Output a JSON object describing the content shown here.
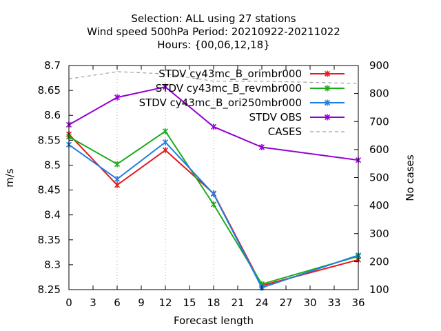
{
  "chart_data": {
    "type": "line",
    "title_lines": [
      "Selection: ALL using    27 stations",
      "Wind speed 500hPa   Period: 20210922-20211022",
      "Hours: {00,06,12,18}"
    ],
    "xlabel": "Forecast length",
    "ylabel": "m/s",
    "y2label": "No cases",
    "xlim": [
      0,
      36
    ],
    "ylim": [
      8.25,
      8.7
    ],
    "y2lim": [
      100,
      900
    ],
    "x_ticks": [
      "0",
      "3",
      "6",
      "9",
      "12",
      "15",
      "18",
      "21",
      "24",
      "27",
      "30",
      "33",
      "36"
    ],
    "y_ticks": [
      "8.25",
      "8.3",
      "8.35",
      "8.4",
      "8.45",
      "8.5",
      "8.55",
      "8.6",
      "8.65",
      "8.7"
    ],
    "y2_ticks": [
      "100",
      "200",
      "300",
      "400",
      "500",
      "600",
      "700",
      "800",
      "900"
    ],
    "grid": true,
    "legend_position": "top-right",
    "x": [
      0,
      6,
      12,
      18,
      24,
      36
    ],
    "series": [
      {
        "name": "STDV cy43mc_B_orimbr000",
        "color": "#e41a1c",
        "values": [
          8.562,
          8.46,
          8.53,
          8.443,
          8.258,
          8.31
        ]
      },
      {
        "name": "STDV cy43mc_B_revmbr000",
        "color": "#1aad19",
        "values": [
          8.557,
          8.502,
          8.568,
          8.421,
          8.261,
          8.317
        ]
      },
      {
        "name": "STDV cy43mc_B_ori250mbr000",
        "color": "#1e7de6",
        "values": [
          8.541,
          8.472,
          8.546,
          8.442,
          8.254,
          8.319
        ]
      },
      {
        "name": "STDV OBS",
        "color": "#9400d3",
        "values": [
          8.581,
          8.636,
          8.657,
          8.577,
          8.536,
          8.51
        ]
      }
    ],
    "cases": {
      "name": "CASES",
      "color": "#a0a0a0",
      "axis": "y2",
      "x": [
        0,
        6,
        12,
        18,
        24,
        36
      ],
      "values": [
        852,
        878,
        870,
        844,
        844,
        836
      ]
    }
  }
}
